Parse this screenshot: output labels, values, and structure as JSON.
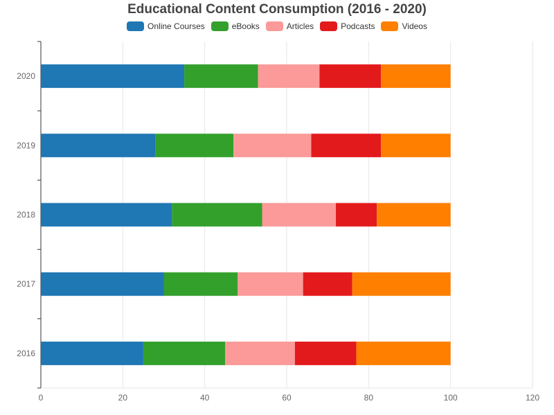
{
  "chart_data": {
    "type": "bar",
    "orientation": "horizontal",
    "stacked": true,
    "title": "Educational Content Consumption (2016 - 2020)",
    "categories": [
      "2016",
      "2017",
      "2018",
      "2019",
      "2020"
    ],
    "series": [
      {
        "name": "Online Courses",
        "color": "#1f77b4",
        "values": [
          25,
          30,
          32,
          28,
          35
        ]
      },
      {
        "name": "eBooks",
        "color": "#33a02c",
        "values": [
          20,
          18,
          22,
          19,
          18
        ]
      },
      {
        "name": "Articles",
        "color": "#fb9a99",
        "values": [
          17,
          16,
          18,
          19,
          15
        ]
      },
      {
        "name": "Podcasts",
        "color": "#e31a1c",
        "values": [
          15,
          12,
          10,
          17,
          15
        ]
      },
      {
        "name": "Videos",
        "color": "#ff7f00",
        "values": [
          23,
          24,
          18,
          17,
          17
        ]
      }
    ],
    "xlim": [
      0,
      120
    ],
    "xticks": [
      "0",
      "20",
      "40",
      "60",
      "80",
      "100",
      "120"
    ],
    "grid": true,
    "legend_position": "top"
  }
}
